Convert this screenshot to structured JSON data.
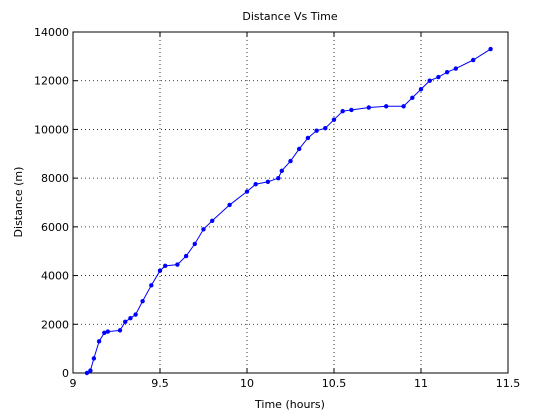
{
  "chart_data": {
    "type": "line",
    "title": "Distance Vs Time",
    "x_label": "Time (hours)",
    "y_label": "Distance (m)",
    "x": [
      9.08,
      9.1,
      9.12,
      9.15,
      9.18,
      9.2,
      9.27,
      9.3,
      9.33,
      9.36,
      9.4,
      9.45,
      9.5,
      9.53,
      9.6,
      9.65,
      9.7,
      9.75,
      9.8,
      9.9,
      10.0,
      10.05,
      10.12,
      10.18,
      10.2,
      10.25,
      10.3,
      10.35,
      10.4,
      10.45,
      10.5,
      10.55,
      10.6,
      10.7,
      10.8,
      10.9,
      10.95,
      11.0,
      11.05,
      11.1,
      11.15,
      11.2,
      11.3,
      11.4
    ],
    "series": [
      {
        "color": "#0000ff",
        "values": [
          0,
          100,
          600,
          1300,
          1650,
          1700,
          1750,
          2100,
          2250,
          2400,
          2950,
          3600,
          4200,
          4400,
          4450,
          4800,
          5300,
          5900,
          6250,
          6900,
          7450,
          7750,
          7850,
          8000,
          8300,
          8700,
          9200,
          9650,
          9950,
          10050,
          10400,
          10750,
          10800,
          10900,
          10950,
          10950,
          11300,
          11650,
          12000,
          12150,
          12350,
          12500,
          12850,
          13300
        ]
      }
    ],
    "xlim": [
      9,
      11.5
    ],
    "xticks": [
      9,
      9.5,
      10,
      10.5,
      11,
      11.5
    ],
    "ylim": [
      0,
      14000
    ],
    "yticks": [
      0,
      2000,
      4000,
      6000,
      8000,
      10000,
      12000,
      14000
    ],
    "grid": true
  }
}
